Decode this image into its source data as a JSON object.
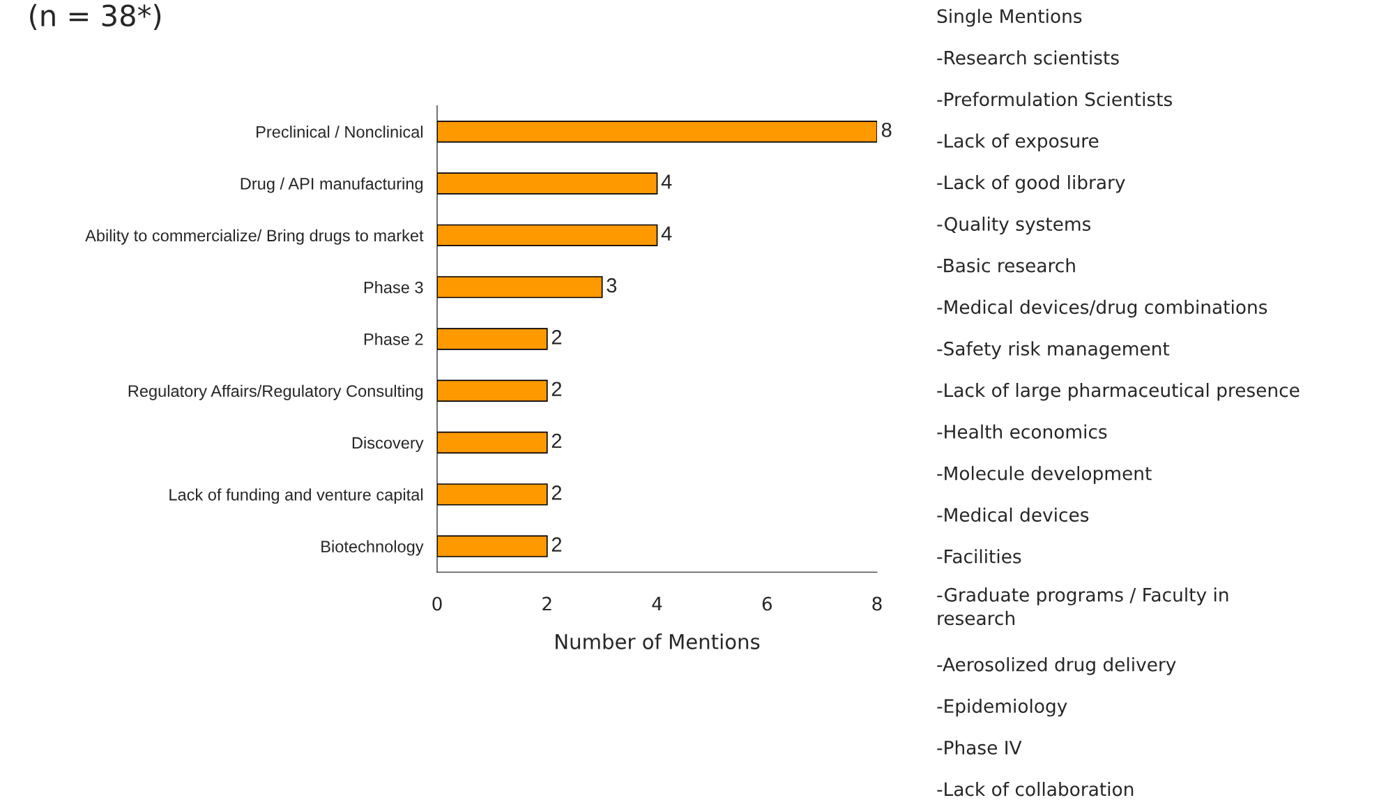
{
  "chart_data": {
    "type": "bar",
    "orientation": "horizontal",
    "title": "(n = 38*)",
    "categories": [
      "Preclinical / Nonclinical",
      "Drug / API manufacturing",
      "Ability to commercialize/ Bring drugs to market",
      "Phase 3",
      "Phase 2",
      "Regulatory Affairs/Regulatory Consulting",
      "Discovery",
      "Lack of funding and venture capital",
      "Biotechnology"
    ],
    "values": [
      8,
      4,
      4,
      3,
      2,
      2,
      2,
      2,
      2
    ],
    "color": "#ff9900",
    "data_labels": true,
    "xlabel": "Number of Mentions",
    "xlim": [
      0,
      8
    ],
    "xticks": [
      0,
      2,
      4,
      6,
      8
    ],
    "grid": false,
    "legend": false,
    "annotations": [
      "Single Mentions",
      "-Research scientists",
      "-Preformulation Scientists",
      "-Lack of exposure",
      "-Lack of good library",
      "-Quality systems",
      "-Basic research",
      "-Medical devices/drug combinations",
      "-Safety risk management",
      "-Lack of large pharmaceutical presence",
      "-Health economics",
      "-Molecule development",
      "-Medical devices",
      "-Facilities",
      "-Graduate programs / Faculty in\nresearch",
      "-Aerosolized drug delivery",
      "-Epidemiology",
      "-Phase IV",
      "-Lack of collaboration"
    ]
  }
}
